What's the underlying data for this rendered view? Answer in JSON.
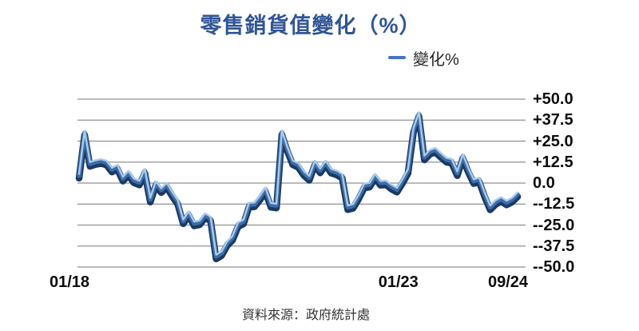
{
  "header": {
    "title": "零售銷貨值變化（%）",
    "title_color": "#2F5597"
  },
  "legend": {
    "items": [
      {
        "label": "變化%",
        "marker_color": "#4472C4"
      }
    ]
  },
  "footer": {
    "source_text": "資料來源：政府統計處"
  },
  "chart_data": {
    "type": "line",
    "style": "3d-ribbon",
    "title": "零售銷貨值變化（%）",
    "legend_entries": [
      "變化%"
    ],
    "legend_position": "top-right",
    "xlabel": "",
    "ylabel": "",
    "ylim": [
      -50,
      50
    ],
    "grid": "horizontal-only",
    "y_ticks": [
      {
        "label": "+50.0",
        "value": 50
      },
      {
        "label": "+37.5",
        "value": 37.5
      },
      {
        "label": "+25.0",
        "value": 25
      },
      {
        "label": "+12.5",
        "value": 12.5
      },
      {
        "label": "0.0",
        "value": 0
      },
      {
        "label": "--12.5",
        "value": -12.5
      },
      {
        "label": "--25.0",
        "value": -25
      },
      {
        "label": "--37.5",
        "value": -37.5
      },
      {
        "label": "--50.0",
        "value": -50
      }
    ],
    "x_ticks": [
      {
        "label": "01/18",
        "index": 0
      },
      {
        "label": "01/23",
        "index": 60
      },
      {
        "label": "09/24",
        "index": 80
      }
    ],
    "x": [
      "01/18",
      "02/18",
      "03/18",
      "04/18",
      "05/18",
      "06/18",
      "07/18",
      "08/18",
      "09/18",
      "10/18",
      "11/18",
      "12/18",
      "01/19",
      "02/19",
      "03/19",
      "04/19",
      "05/19",
      "06/19",
      "07/19",
      "08/19",
      "09/19",
      "10/19",
      "11/19",
      "12/19",
      "01/20",
      "02/20",
      "03/20",
      "04/20",
      "05/20",
      "06/20",
      "07/20",
      "08/20",
      "09/20",
      "10/20",
      "11/20",
      "12/20",
      "01/21",
      "02/21",
      "03/21",
      "04/21",
      "05/21",
      "06/21",
      "07/21",
      "08/21",
      "09/21",
      "10/21",
      "11/21",
      "12/21",
      "01/22",
      "02/22",
      "03/22",
      "04/22",
      "05/22",
      "06/22",
      "07/22",
      "08/22",
      "09/22",
      "10/22",
      "11/22",
      "12/22",
      "01/23",
      "02/23",
      "03/23",
      "04/23",
      "05/23",
      "06/23",
      "07/23",
      "08/23",
      "09/23",
      "10/23",
      "11/23",
      "12/23",
      "01/24",
      "02/24",
      "03/24",
      "04/24",
      "05/24",
      "06/24",
      "07/24",
      "08/24",
      "09/24"
    ],
    "series": [
      {
        "name": "變化%",
        "values": [
          4.1,
          29.8,
          11.2,
          12.3,
          12.9,
          12.0,
          7.8,
          9.5,
          2.4,
          5.9,
          1.4,
          0.1,
          7.1,
          -10.1,
          -0.2,
          -4.5,
          -1.3,
          -6.7,
          -11.4,
          -23.0,
          -18.2,
          -24.3,
          -23.6,
          -19.4,
          -21.4,
          -44.0,
          -42.0,
          -36.1,
          -32.8,
          -24.8,
          -23.1,
          -13.1,
          -12.9,
          -8.8,
          -4.0,
          -13.2,
          -13.6,
          30.0,
          20.1,
          12.1,
          10.5,
          5.8,
          2.9,
          11.9,
          7.3,
          12.0,
          7.1,
          6.1,
          4.1,
          -14.6,
          -13.8,
          -8.3,
          -1.7,
          -1.2,
          4.1,
          -0.1,
          0.2,
          -2.4,
          -4.2,
          1.1,
          7.0,
          31.3,
          40.9,
          15.0,
          18.4,
          19.6,
          16.5,
          13.7,
          13.0,
          5.6,
          15.9,
          7.8,
          0.9,
          1.9,
          -7.0,
          -14.7,
          -11.5,
          -9.7,
          -11.8,
          -10.1,
          -6.9
        ]
      }
    ],
    "colors": {
      "ribbon_face": "#3E6DA9",
      "ribbon_dark": "#1B3A63",
      "ribbon_highlight": "#A9CCEC",
      "gridline": "#909090"
    }
  }
}
